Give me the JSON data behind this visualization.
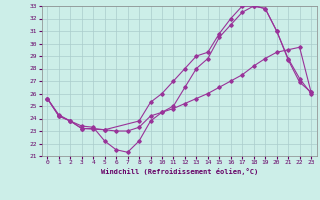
{
  "xlabel": "Windchill (Refroidissement éolien,°C)",
  "background_color": "#cceee8",
  "grid_color": "#aacccc",
  "line_color": "#993399",
  "xlim": [
    -0.5,
    23.5
  ],
  "ylim": [
    21,
    33
  ],
  "xticks": [
    0,
    1,
    2,
    3,
    4,
    5,
    6,
    7,
    8,
    9,
    10,
    11,
    12,
    13,
    14,
    15,
    16,
    17,
    18,
    19,
    20,
    21,
    22,
    23
  ],
  "yticks": [
    21,
    22,
    23,
    24,
    25,
    26,
    27,
    28,
    29,
    30,
    31,
    32,
    33
  ],
  "line1_x": [
    0,
    1,
    2,
    3,
    4,
    5,
    6,
    7,
    8,
    9,
    10,
    11,
    12,
    13,
    14,
    15,
    16,
    17,
    18,
    19,
    20,
    21,
    22,
    23
  ],
  "line1_y": [
    25.6,
    24.3,
    23.8,
    23.4,
    23.3,
    22.2,
    21.5,
    21.3,
    22.2,
    23.8,
    24.5,
    25.0,
    26.5,
    28.0,
    28.8,
    30.5,
    31.5,
    32.5,
    33.0,
    32.8,
    31.0,
    28.8,
    27.2,
    26.0
  ],
  "line2_x": [
    0,
    1,
    2,
    3,
    4,
    5,
    6,
    7,
    8,
    9,
    10,
    11,
    12,
    13,
    14,
    15,
    16,
    17,
    18,
    19,
    20,
    21,
    22,
    23
  ],
  "line2_y": [
    25.6,
    24.2,
    23.8,
    23.2,
    23.2,
    23.1,
    23.0,
    23.0,
    23.3,
    24.2,
    24.5,
    24.8,
    25.2,
    25.6,
    26.0,
    26.5,
    27.0,
    27.5,
    28.2,
    28.8,
    29.3,
    29.5,
    29.7,
    26.1
  ],
  "line3_x": [
    0,
    1,
    2,
    3,
    5,
    8,
    9,
    10,
    11,
    12,
    13,
    14,
    15,
    16,
    17,
    18,
    19,
    20,
    21,
    22,
    23
  ],
  "line3_y": [
    25.6,
    24.2,
    23.8,
    23.2,
    23.1,
    23.8,
    25.3,
    26.0,
    27.0,
    28.0,
    29.0,
    29.3,
    30.8,
    32.0,
    33.0,
    33.0,
    32.8,
    31.0,
    28.7,
    26.9,
    26.1
  ]
}
